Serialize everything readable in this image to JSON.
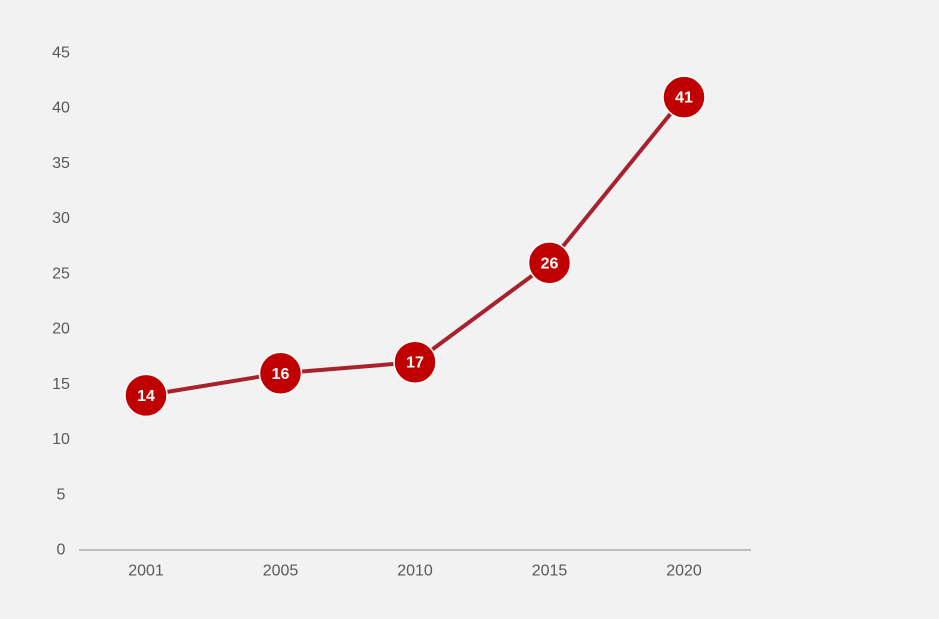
{
  "chart_data": {
    "type": "line",
    "title": "",
    "xlabel": "",
    "ylabel": "",
    "categories": [
      "2001",
      "2005",
      "2010",
      "2015",
      "2020"
    ],
    "series": [
      {
        "values": [
          14,
          16,
          17,
          26,
          41
        ]
      }
    ],
    "data_labels": [
      "14",
      "16",
      "17",
      "26",
      "41"
    ],
    "ylim": [
      0,
      45
    ],
    "y_ticks": [
      0,
      5,
      10,
      15,
      20,
      25,
      30,
      35,
      40,
      45
    ],
    "y_tick_labels": [
      "0",
      "5",
      "10",
      "15",
      "20",
      "25",
      "30",
      "35",
      "40",
      "45"
    ],
    "grid": false,
    "legend": "none",
    "colors": {
      "line": "#a6222e",
      "marker": "#c00000",
      "marker_border": "#ffffff",
      "axis": "#bfbfbf",
      "tick_text": "#595959",
      "label_text": "#ffffff",
      "background": "#f2f2f2"
    }
  }
}
